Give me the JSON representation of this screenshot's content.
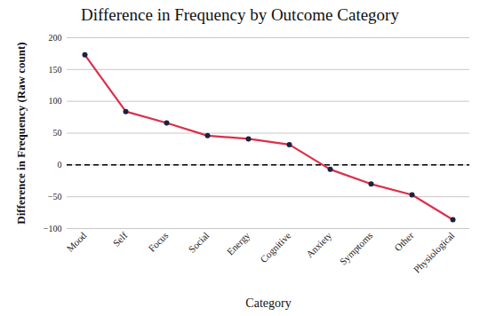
{
  "chart_data": {
    "type": "line",
    "title": "Difference in Frequency by Outcome Category",
    "x_label": "Category",
    "y_label": "Difference in Frequency (Raw count)",
    "categories": [
      "Mood",
      "Self",
      "Focus",
      "Social",
      "Energy",
      "Cognitive",
      "Anxiety",
      "Symptoms",
      "Other",
      "Physiological"
    ],
    "values": [
      173,
      84,
      66,
      46,
      41,
      32,
      -7,
      -30,
      -47,
      -86
    ],
    "color": "#dc2f4b",
    "marker": "circle",
    "ylim": [
      -100,
      200
    ],
    "yticks": [
      -100,
      -50,
      0,
      50,
      100,
      150,
      200
    ],
    "grid": true
  }
}
